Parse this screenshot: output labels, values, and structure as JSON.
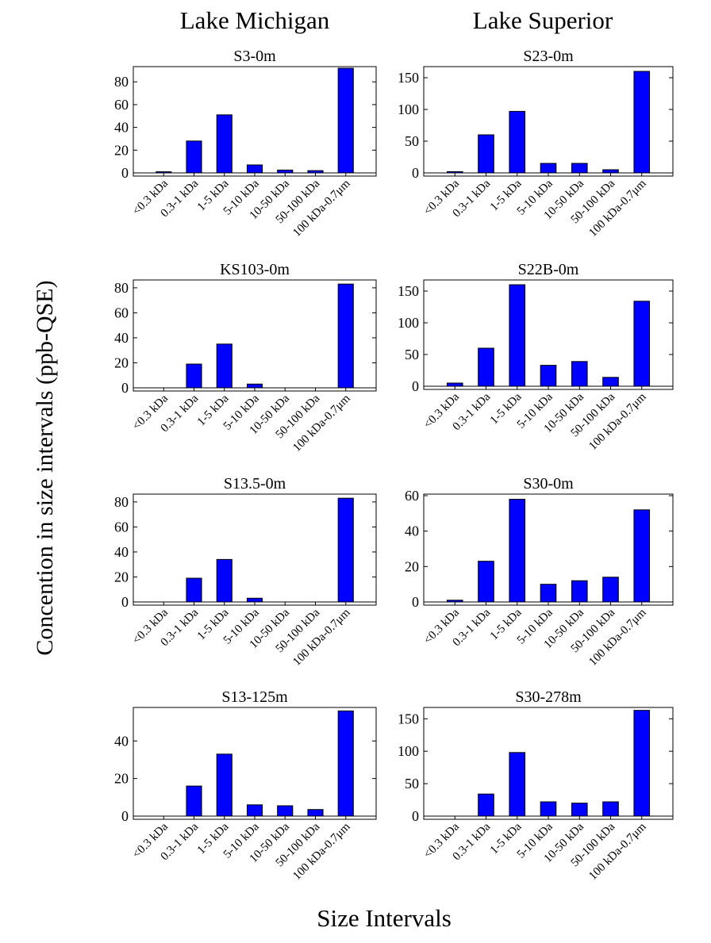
{
  "column_titles": [
    "Lake Michigan",
    "Lake Superior"
  ],
  "ylabel": "Concention in size intervals (ppb-QSE)",
  "xlabel": "Size Intervals",
  "colors": {
    "bar": "#0000ff",
    "edge": "#000000"
  },
  "chart_data": [
    {
      "type": "bar",
      "title": "S3-0m",
      "categories": [
        "<0.3 kDa",
        "0.3-1 kDa",
        "1-5 kDa",
        "5-10 kDa",
        "10-50 kDa",
        "50-100 kDa",
        "100 kDa-0.7μm"
      ],
      "values": [
        1,
        28,
        51,
        7,
        2.5,
        2,
        92
      ],
      "ylim": [
        0,
        92
      ],
      "yticks": [
        0,
        20,
        40,
        60,
        80
      ]
    },
    {
      "type": "bar",
      "title": "S23-0m",
      "categories": [
        "<0.3 kDa",
        "0.3-1 kDa",
        "1-5 kDa",
        "5-10 kDa",
        "10-50 kDa",
        "50-100 kDa",
        "100 kDa-0.7μm"
      ],
      "values": [
        2,
        60,
        97,
        15,
        15,
        5,
        160
      ],
      "ylim": [
        0,
        165
      ],
      "yticks": [
        0,
        50,
        100,
        150
      ]
    },
    {
      "type": "bar",
      "title": "KS103-0m",
      "categories": [
        "<0.3 kDa",
        "0.3-1 kDa",
        "1-5 kDa",
        "5-10 kDa",
        "10-50 kDa",
        "50-100 kDa",
        "100 kDa-0.7μm"
      ],
      "values": [
        0,
        19,
        35,
        3,
        0,
        0,
        83
      ],
      "ylim": [
        0,
        85
      ],
      "yticks": [
        0,
        20,
        40,
        60,
        80
      ]
    },
    {
      "type": "bar",
      "title": "S22B-0m",
      "categories": [
        "<0.3 kDa",
        "0.3-1 kDa",
        "1-5 kDa",
        "5-10 kDa",
        "10-50 kDa",
        "50-100 kDa",
        "100 kDa-0.7μm"
      ],
      "values": [
        5,
        60,
        160,
        33,
        39,
        14,
        134
      ],
      "ylim": [
        0,
        165
      ],
      "yticks": [
        0,
        50,
        100,
        150
      ]
    },
    {
      "type": "bar",
      "title": "S13.5-0m",
      "categories": [
        "<0.3 kDa",
        "0.3-1 kDa",
        "1-5 kDa",
        "5-10 kDa",
        "10-50 kDa",
        "50-100 kDa",
        "100 kDa-0.7μm"
      ],
      "values": [
        0,
        19,
        34,
        3,
        0,
        0,
        83
      ],
      "ylim": [
        0,
        85
      ],
      "yticks": [
        0,
        20,
        40,
        60,
        80
      ]
    },
    {
      "type": "bar",
      "title": "S30-0m",
      "categories": [
        "<0.3 kDa",
        "0.3-1 kDa",
        "1-5 kDa",
        "5-10 kDa",
        "10-50 kDa",
        "50-100 kDa",
        "100 kDa-0.7μm"
      ],
      "values": [
        1,
        23,
        58,
        10,
        12,
        14,
        52
      ],
      "ylim": [
        0,
        60
      ],
      "yticks": [
        0,
        20,
        40,
        60
      ]
    },
    {
      "type": "bar",
      "title": "S13-125m",
      "categories": [
        "<0.3 kDa",
        "0.3-1 kDa",
        "1-5 kDa",
        "5-10 kDa",
        "10-50 kDa",
        "50-100 kDa",
        "100 kDa-0.7μm"
      ],
      "values": [
        0,
        16,
        33,
        6,
        5.5,
        3.5,
        56
      ],
      "ylim": [
        0,
        57
      ],
      "yticks": [
        0,
        20,
        40
      ]
    },
    {
      "type": "bar",
      "title": "S30-278m",
      "categories": [
        "<0.3 kDa",
        "0.3-1 kDa",
        "1-5 kDa",
        "5-10 kDa",
        "10-50 kDa",
        "50-100 kDa",
        "100 kDa-0.7μm"
      ],
      "values": [
        0,
        34,
        98,
        22,
        20,
        22,
        163
      ],
      "ylim": [
        0,
        165
      ],
      "yticks": [
        0,
        50,
        100,
        150
      ]
    }
  ]
}
